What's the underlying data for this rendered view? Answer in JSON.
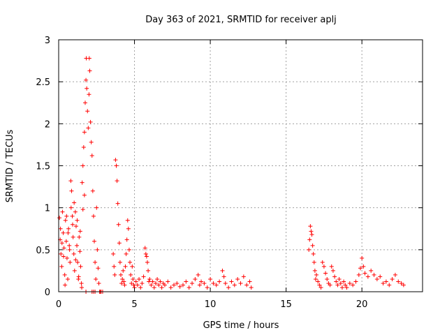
{
  "chart_data": {
    "type": "scatter",
    "title": "Day 363 of 2021, SRMTID for receiver aplj",
    "xlabel": "GPS time / hours",
    "ylabel": "SRMTID / TECUs",
    "xlim": [
      0,
      24
    ],
    "ylim": [
      0,
      3
    ],
    "xticks": [
      0,
      5,
      10,
      15,
      20
    ],
    "xtick_labels": [
      "0",
      "5",
      "10",
      "15",
      "20"
    ],
    "yticks": [
      0,
      0.5,
      1,
      1.5,
      2,
      2.5,
      3
    ],
    "ytick_labels": [
      "0",
      "0.5",
      "1",
      "1.5",
      "2",
      "2.5",
      "3"
    ],
    "grid": true,
    "marker": "+",
    "color": "#ff0000",
    "series": [
      {
        "name": "SRMTID",
        "points": [
          [
            0.05,
            0.88
          ],
          [
            0.1,
            0.62
          ],
          [
            0.15,
            0.45
          ],
          [
            0.2,
            0.3
          ],
          [
            0.25,
            0.95
          ],
          [
            0.3,
            0.7
          ],
          [
            0.35,
            0.52
          ],
          [
            0.4,
            0.2
          ],
          [
            0.45,
            0.85
          ],
          [
            0.5,
            0.6
          ],
          [
            0.55,
            0.4
          ],
          [
            0.6,
            0.15
          ],
          [
            0.65,
            0.75
          ],
          [
            0.7,
            0.55
          ],
          [
            0.75,
            0.35
          ],
          [
            0.8,
            1.32
          ],
          [
            0.85,
            1.2
          ],
          [
            0.9,
            0.9
          ],
          [
            0.95,
            0.65
          ],
          [
            1.0,
            0.45
          ],
          [
            1.05,
            0.25
          ],
          [
            1.1,
            0.95
          ],
          [
            1.15,
            0.78
          ],
          [
            1.2,
            0.55
          ],
          [
            1.25,
            0.35
          ],
          [
            1.3,
            0.15
          ],
          [
            1.35,
            0.65
          ],
          [
            1.4,
            0.48
          ],
          [
            1.45,
            0.3
          ],
          [
            1.5,
            0.1
          ],
          [
            0.12,
            0.75
          ],
          [
            0.22,
            0.58
          ],
          [
            0.32,
            0.42
          ],
          [
            0.42,
            0.08
          ],
          [
            0.52,
            0.9
          ],
          [
            0.62,
            0.7
          ],
          [
            0.72,
            0.5
          ],
          [
            0.82,
            1.0
          ],
          [
            0.92,
            0.8
          ],
          [
            1.02,
            1.06
          ],
          [
            1.12,
            0.38
          ],
          [
            1.22,
            0.85
          ],
          [
            1.32,
            0.18
          ],
          [
            1.42,
            0.72
          ],
          [
            1.52,
            0.05
          ],
          [
            1.55,
            1.3
          ],
          [
            1.6,
            1.5
          ],
          [
            1.65,
            1.72
          ],
          [
            1.7,
            1.9
          ],
          [
            1.75,
            2.25
          ],
          [
            1.8,
            2.52
          ],
          [
            1.82,
            2.78
          ],
          [
            1.85,
            2.42
          ],
          [
            1.9,
            2.15
          ],
          [
            1.95,
            1.95
          ],
          [
            2.0,
            2.35
          ],
          [
            2.02,
            2.78
          ],
          [
            2.05,
            2.63
          ],
          [
            2.1,
            2.02
          ],
          [
            2.15,
            1.78
          ],
          [
            2.2,
            1.62
          ],
          [
            2.25,
            1.2
          ],
          [
            2.3,
            0.9
          ],
          [
            2.35,
            0.6
          ],
          [
            2.4,
            0.35
          ],
          [
            2.45,
            0.15
          ],
          [
            2.5,
            1.0
          ],
          [
            2.55,
            0.5
          ],
          [
            2.6,
            0.28
          ],
          [
            2.65,
            0.1
          ],
          [
            2.7,
            0.0
          ],
          [
            2.75,
            0.0
          ],
          [
            2.8,
            0.0
          ],
          [
            2.9,
            0.0
          ],
          [
            1.6,
            0.98
          ],
          [
            1.7,
            1.15
          ],
          [
            1.8,
            0.0
          ],
          [
            2.2,
            0.0
          ],
          [
            2.3,
            0.0
          ],
          [
            2.4,
            0.0
          ],
          [
            3.6,
            0.45
          ],
          [
            3.65,
            0.3
          ],
          [
            3.7,
            0.2
          ],
          [
            3.75,
            1.57
          ],
          [
            3.8,
            1.5
          ],
          [
            3.85,
            1.32
          ],
          [
            3.9,
            1.05
          ],
          [
            3.95,
            0.8
          ],
          [
            4.0,
            0.58
          ],
          [
            4.05,
            0.35
          ],
          [
            4.1,
            0.2
          ],
          [
            4.15,
            0.1
          ],
          [
            4.2,
            0.15
          ],
          [
            4.25,
            0.25
          ],
          [
            4.3,
            0.12
          ],
          [
            4.35,
            0.08
          ],
          [
            4.4,
            0.3
          ],
          [
            4.45,
            0.45
          ],
          [
            4.5,
            0.62
          ],
          [
            4.55,
            0.85
          ],
          [
            4.6,
            0.75
          ],
          [
            4.65,
            0.5
          ],
          [
            4.7,
            0.35
          ],
          [
            4.75,
            0.2
          ],
          [
            4.8,
            0.1
          ],
          [
            4.85,
            0.3
          ],
          [
            4.9,
            0.15
          ],
          [
            4.95,
            0.08
          ],
          [
            5.0,
            0.05
          ],
          [
            5.1,
            0.12
          ],
          [
            5.2,
            0.08
          ],
          [
            5.3,
            0.15
          ],
          [
            5.4,
            0.05
          ],
          [
            5.5,
            0.1
          ],
          [
            5.6,
            0.18
          ],
          [
            5.7,
            0.52
          ],
          [
            5.75,
            0.45
          ],
          [
            5.8,
            0.42
          ],
          [
            5.85,
            0.35
          ],
          [
            5.9,
            0.25
          ],
          [
            5.95,
            0.12
          ],
          [
            6.0,
            0.15
          ],
          [
            6.1,
            0.08
          ],
          [
            6.2,
            0.12
          ],
          [
            6.3,
            0.05
          ],
          [
            6.4,
            0.1
          ],
          [
            6.5,
            0.15
          ],
          [
            6.6,
            0.08
          ],
          [
            6.7,
            0.12
          ],
          [
            6.8,
            0.05
          ],
          [
            6.9,
            0.1
          ],
          [
            7.0,
            0.08
          ],
          [
            7.2,
            0.12
          ],
          [
            7.4,
            0.05
          ],
          [
            7.6,
            0.08
          ],
          [
            7.8,
            0.1
          ],
          [
            8.0,
            0.06
          ],
          [
            8.2,
            0.08
          ],
          [
            8.4,
            0.12
          ],
          [
            8.6,
            0.05
          ],
          [
            8.8,
            0.1
          ],
          [
            9.0,
            0.15
          ],
          [
            9.2,
            0.2
          ],
          [
            9.3,
            0.08
          ],
          [
            9.4,
            0.12
          ],
          [
            9.6,
            0.1
          ],
          [
            9.8,
            0.05
          ],
          [
            10.0,
            0.15
          ],
          [
            10.2,
            0.1
          ],
          [
            10.4,
            0.08
          ],
          [
            10.6,
            0.12
          ],
          [
            10.8,
            0.25
          ],
          [
            10.9,
            0.18
          ],
          [
            11.0,
            0.1
          ],
          [
            11.2,
            0.05
          ],
          [
            11.4,
            0.12
          ],
          [
            11.6,
            0.08
          ],
          [
            11.8,
            0.15
          ],
          [
            12.0,
            0.1
          ],
          [
            12.2,
            0.18
          ],
          [
            12.4,
            0.08
          ],
          [
            12.6,
            0.12
          ],
          [
            12.7,
            0.05
          ],
          [
            16.5,
            0.5
          ],
          [
            16.55,
            0.62
          ],
          [
            16.6,
            0.78
          ],
          [
            16.65,
            0.72
          ],
          [
            16.7,
            0.68
          ],
          [
            16.75,
            0.55
          ],
          [
            16.8,
            0.45
          ],
          [
            16.85,
            0.35
          ],
          [
            16.9,
            0.25
          ],
          [
            16.95,
            0.15
          ],
          [
            17.0,
            0.2
          ],
          [
            17.1,
            0.12
          ],
          [
            17.2,
            0.08
          ],
          [
            17.3,
            0.05
          ],
          [
            17.4,
            0.35
          ],
          [
            17.5,
            0.3
          ],
          [
            17.6,
            0.22
          ],
          [
            17.7,
            0.15
          ],
          [
            17.8,
            0.1
          ],
          [
            17.9,
            0.08
          ],
          [
            18.0,
            0.3
          ],
          [
            18.1,
            0.25
          ],
          [
            18.2,
            0.18
          ],
          [
            18.3,
            0.12
          ],
          [
            18.4,
            0.08
          ],
          [
            18.5,
            0.15
          ],
          [
            18.6,
            0.1
          ],
          [
            18.7,
            0.05
          ],
          [
            18.8,
            0.12
          ],
          [
            18.9,
            0.08
          ],
          [
            19.0,
            0.05
          ],
          [
            19.2,
            0.1
          ],
          [
            19.4,
            0.08
          ],
          [
            19.6,
            0.12
          ],
          [
            19.8,
            0.2
          ],
          [
            19.9,
            0.28
          ],
          [
            20.0,
            0.4
          ],
          [
            20.1,
            0.3
          ],
          [
            20.2,
            0.22
          ],
          [
            20.4,
            0.18
          ],
          [
            20.6,
            0.25
          ],
          [
            20.8,
            0.2
          ],
          [
            21.0,
            0.15
          ],
          [
            21.2,
            0.18
          ],
          [
            21.4,
            0.1
          ],
          [
            21.6,
            0.12
          ],
          [
            21.8,
            0.08
          ],
          [
            22.0,
            0.15
          ],
          [
            22.2,
            0.2
          ],
          [
            22.4,
            0.12
          ],
          [
            22.6,
            0.1
          ],
          [
            22.75,
            0.08
          ]
        ]
      }
    ]
  }
}
